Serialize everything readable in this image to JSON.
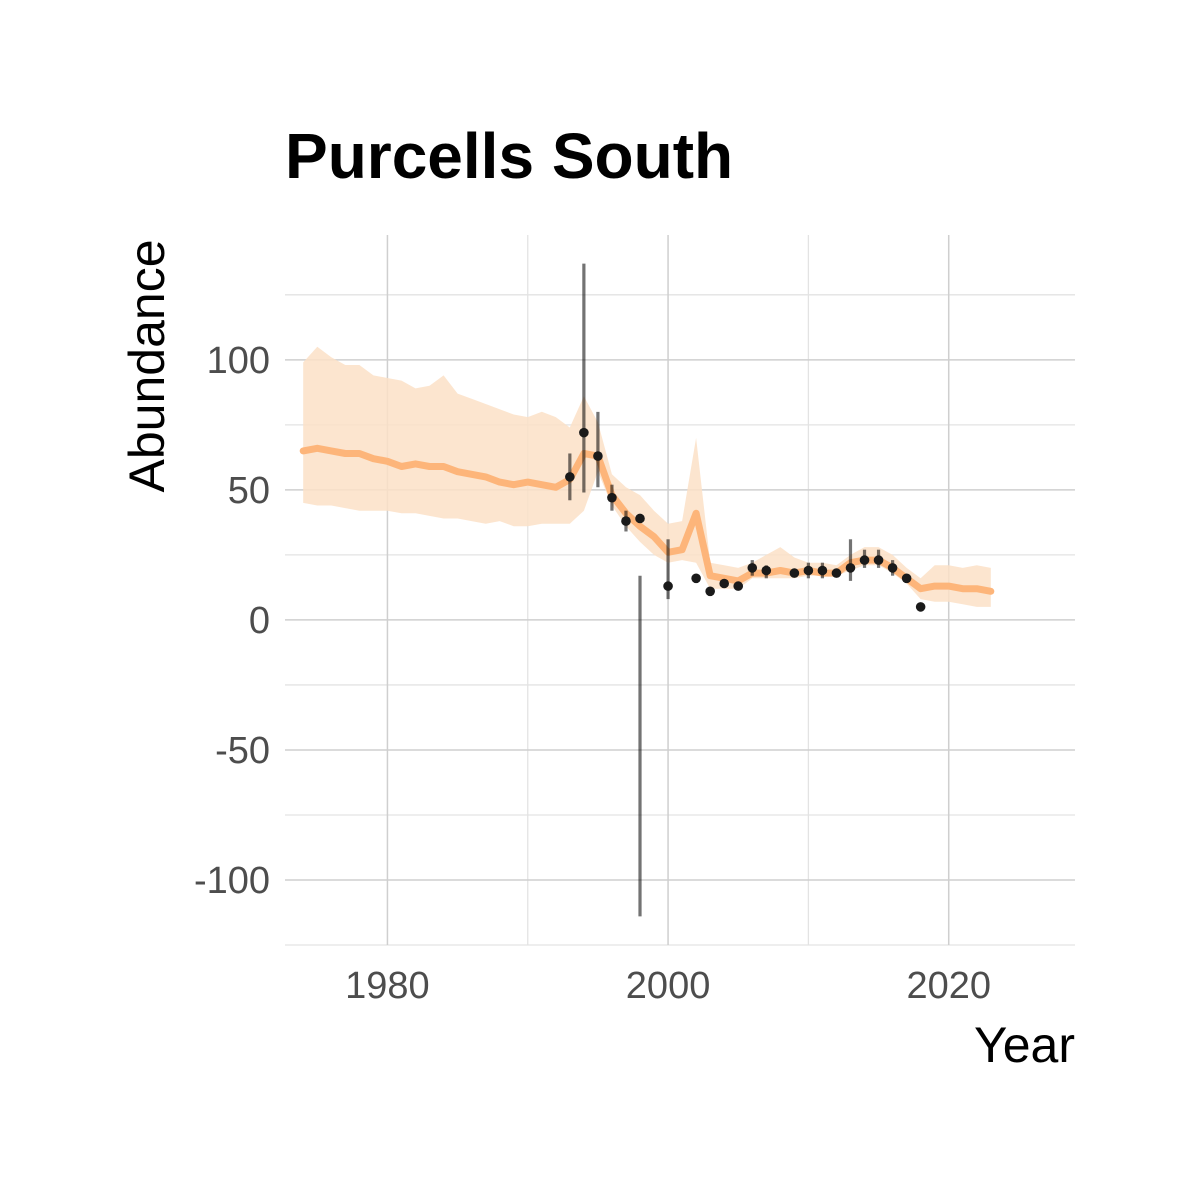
{
  "chart_data": {
    "type": "line",
    "title": "Purcells South",
    "xlabel": "Year",
    "ylabel": "Abundance",
    "xlim": [
      1972.7,
      2029
    ],
    "ylim": [
      -125,
      148
    ],
    "x_ticks": [
      1980,
      2000,
      2020
    ],
    "y_ticks": [
      -100,
      -50,
      0,
      50,
      100
    ],
    "grid": true,
    "legend": "none",
    "colors": {
      "estimate_line": "#FDB57A",
      "estimate_band": "#FCE0C7",
      "observations": "#1a1a1a",
      "error_bars": "#6b6b6b"
    },
    "series": [
      {
        "kind": "model_estimate",
        "x": [
          1974,
          1975,
          1976,
          1977,
          1978,
          1979,
          1980,
          1981,
          1982,
          1983,
          1984,
          1985,
          1986,
          1987,
          1988,
          1989,
          1990,
          1991,
          1992,
          1993,
          1994,
          1995,
          1996,
          1997,
          1998,
          1999,
          2000,
          2001,
          2002,
          2003,
          2004,
          2005,
          2006,
          2007,
          2008,
          2009,
          2010,
          2011,
          2012,
          2013,
          2014,
          2015,
          2016,
          2017,
          2018,
          2019,
          2020,
          2021,
          2022,
          2023
        ],
        "y": [
          65,
          66,
          65,
          64,
          64,
          62,
          61,
          59,
          60,
          59,
          59,
          57,
          56,
          55,
          53,
          52,
          53,
          52,
          51,
          54,
          64,
          63,
          48,
          41,
          36,
          32,
          26,
          27,
          41,
          17,
          16,
          15,
          18,
          18,
          19,
          18,
          19,
          18,
          18,
          22,
          23,
          23,
          20,
          16,
          12,
          13,
          13,
          12,
          12,
          11
        ],
        "lower": [
          45,
          44,
          44,
          43,
          42,
          42,
          42,
          41,
          41,
          40,
          39,
          39,
          38,
          37,
          38,
          36,
          36,
          37,
          37,
          37,
          42,
          57,
          44,
          36,
          30,
          25,
          22,
          23,
          22,
          12,
          12,
          12,
          16,
          16,
          16,
          16,
          17,
          17,
          17,
          19,
          21,
          21,
          18,
          14,
          8,
          7,
          7,
          6,
          5,
          5
        ],
        "upper": [
          99,
          105,
          101,
          98,
          98,
          94,
          93,
          92,
          89,
          90,
          94,
          87,
          85,
          83,
          81,
          79,
          78,
          80,
          78,
          74,
          86,
          76,
          56,
          51,
          48,
          42,
          37,
          38,
          70,
          22,
          21,
          20,
          22,
          25,
          28,
          24,
          22,
          22,
          21,
          25,
          28,
          28,
          25,
          20,
          16,
          21,
          21,
          20,
          21,
          20
        ]
      },
      {
        "kind": "observed",
        "x": [
          1993,
          1994,
          1995,
          1996,
          1997,
          1998,
          2000,
          2002,
          2003,
          2004,
          2005,
          2006,
          2007,
          2009,
          2010,
          2011,
          2012,
          2013,
          2014,
          2015,
          2016,
          2017,
          2018
        ],
        "y": [
          55,
          72,
          63,
          47,
          38,
          39,
          13,
          16,
          11,
          14,
          13,
          20,
          19,
          18,
          19,
          19,
          18,
          20,
          23,
          23,
          20,
          16,
          5
        ],
        "error_low": [
          46,
          49,
          51,
          42,
          34,
          -114,
          8,
          null,
          null,
          null,
          null,
          17,
          16,
          null,
          16,
          16,
          null,
          15,
          20,
          20,
          17,
          null,
          null
        ],
        "error_high": [
          64,
          137,
          80,
          52,
          42,
          17,
          31,
          null,
          null,
          null,
          null,
          23,
          21,
          null,
          22,
          22,
          null,
          31,
          27,
          27,
          23,
          null,
          null
        ]
      }
    ]
  }
}
